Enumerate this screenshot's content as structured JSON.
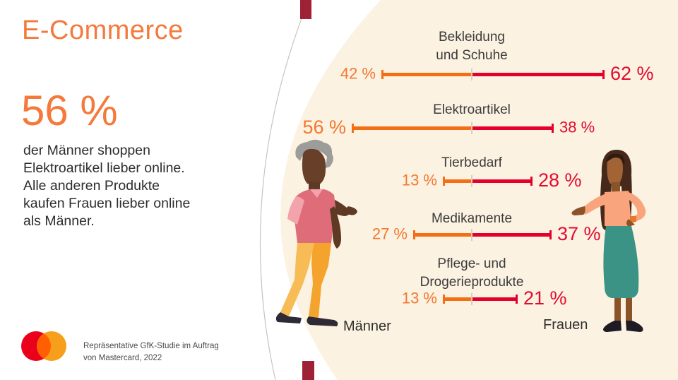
{
  "slide": {
    "title": "E-Commerce",
    "stat_value": "56 %",
    "stat_text": "der Männer shoppen Elektroartikel lieber online. Alle anderen Produkte kaufen Frauen lieber online als Männer.",
    "source_line1": "Repräsentative GfK-Studie im Auftrag",
    "source_line2": "von Mastercard, 2022"
  },
  "chart_data": {
    "type": "bar",
    "variant": "diverging_dumbbell",
    "title": "",
    "categories": [
      "Bekleidung und Schuhe",
      "Elektroartikel",
      "Tierbedarf",
      "Medikamente",
      "Pflege- und Drogerieprodukte"
    ],
    "category_label_lines": [
      [
        "Bekleidung",
        "und Schuhe"
      ],
      [
        "Elektroartikel"
      ],
      [
        "Tierbedarf"
      ],
      [
        "Medikamente"
      ],
      [
        "Pflege- und",
        "Drogerieprodukte"
      ]
    ],
    "series": [
      {
        "name": "Männer",
        "side": "left",
        "color": "#F36E15",
        "values": [
          42,
          56,
          13,
          27,
          13
        ]
      },
      {
        "name": "Frauen",
        "side": "right",
        "color": "#E4002B",
        "values": [
          62,
          38,
          28,
          37,
          21
        ]
      }
    ],
    "unit": "%",
    "value_suffix": " %",
    "xlim": [
      0,
      62
    ],
    "axis": "none",
    "grid": false,
    "legend_position": "bottom",
    "emphasis_rule": "larger value of each pair rendered bigger"
  },
  "colors": {
    "accent_orange": "#F5793B",
    "value_orange": "#F4772E",
    "bar_orange": "#F36E15",
    "value_red": "#E30B2D",
    "bar_red": "#E4002B",
    "cream_background": "#FCF2E2",
    "curve_gray": "#CBC4BD",
    "tab_dark_red": "#9E2135",
    "text_dark": "#2D2D2D",
    "label_gray": "#3B3B3B",
    "tick_tan": "#DBCFBC",
    "mastercard_red": "#EB001B",
    "mastercard_orange": "#F79E1B",
    "mastercard_overlap": "#FF5F00"
  },
  "icons": {
    "mastercard_logo": "overlapping-circles"
  }
}
